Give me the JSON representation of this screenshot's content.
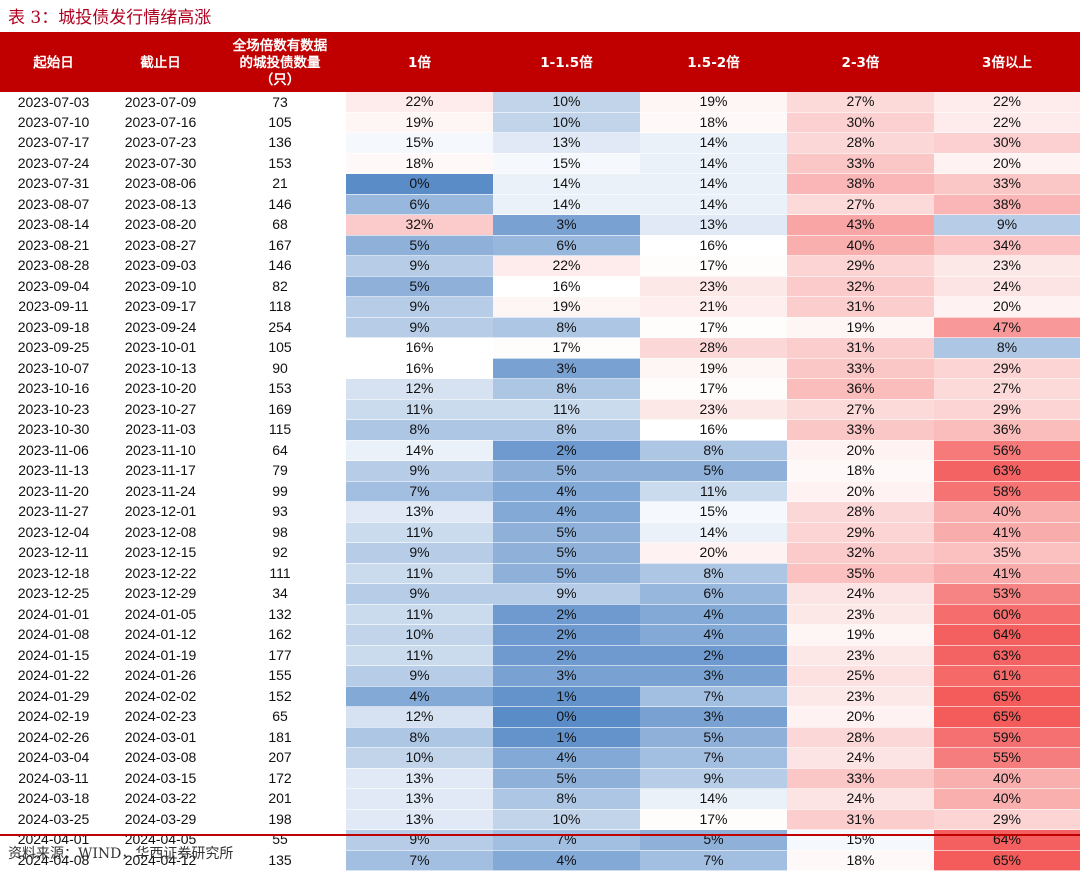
{
  "title": "表 3：城投债发行情绪高涨",
  "source": "资料来源：WIND，华西证券研究所",
  "colors": {
    "header_bg": "#c00000",
    "high": "#f45c5c",
    "low": "#5a8cc8",
    "mid": "#ffffff"
  },
  "chart_data": {
    "type": "table",
    "columns": [
      "起始日",
      "截止日",
      "全场倍数有数据的城投债数量（只）",
      "1倍",
      "1-1.5倍",
      "1.5-2倍",
      "2-3倍",
      "3倍以上"
    ],
    "rows": [
      [
        "2023-07-03",
        "2023-07-09",
        "73",
        "22%",
        "10%",
        "19%",
        "27%",
        "22%"
      ],
      [
        "2023-07-10",
        "2023-07-16",
        "105",
        "19%",
        "10%",
        "18%",
        "30%",
        "22%"
      ],
      [
        "2023-07-17",
        "2023-07-23",
        "136",
        "15%",
        "13%",
        "14%",
        "28%",
        "30%"
      ],
      [
        "2023-07-24",
        "2023-07-30",
        "153",
        "18%",
        "15%",
        "14%",
        "33%",
        "20%"
      ],
      [
        "2023-07-31",
        "2023-08-06",
        "21",
        "0%",
        "14%",
        "14%",
        "38%",
        "33%"
      ],
      [
        "2023-08-07",
        "2023-08-13",
        "146",
        "6%",
        "14%",
        "14%",
        "27%",
        "38%"
      ],
      [
        "2023-08-14",
        "2023-08-20",
        "68",
        "32%",
        "3%",
        "13%",
        "43%",
        "9%"
      ],
      [
        "2023-08-21",
        "2023-08-27",
        "167",
        "5%",
        "6%",
        "16%",
        "40%",
        "34%"
      ],
      [
        "2023-08-28",
        "2023-09-03",
        "146",
        "9%",
        "22%",
        "17%",
        "29%",
        "23%"
      ],
      [
        "2023-09-04",
        "2023-09-10",
        "82",
        "5%",
        "16%",
        "23%",
        "32%",
        "24%"
      ],
      [
        "2023-09-11",
        "2023-09-17",
        "118",
        "9%",
        "19%",
        "21%",
        "31%",
        "20%"
      ],
      [
        "2023-09-18",
        "2023-09-24",
        "254",
        "9%",
        "8%",
        "17%",
        "19%",
        "47%"
      ],
      [
        "2023-09-25",
        "2023-10-01",
        "105",
        "16%",
        "17%",
        "28%",
        "31%",
        "8%"
      ],
      [
        "2023-10-07",
        "2023-10-13",
        "90",
        "16%",
        "3%",
        "19%",
        "33%",
        "29%"
      ],
      [
        "2023-10-16",
        "2023-10-20",
        "153",
        "12%",
        "8%",
        "17%",
        "36%",
        "27%"
      ],
      [
        "2023-10-23",
        "2023-10-27",
        "169",
        "11%",
        "11%",
        "23%",
        "27%",
        "29%"
      ],
      [
        "2023-10-30",
        "2023-11-03",
        "115",
        "8%",
        "8%",
        "16%",
        "33%",
        "36%"
      ],
      [
        "2023-11-06",
        "2023-11-10",
        "64",
        "14%",
        "2%",
        "8%",
        "20%",
        "56%"
      ],
      [
        "2023-11-13",
        "2023-11-17",
        "79",
        "9%",
        "5%",
        "5%",
        "18%",
        "63%"
      ],
      [
        "2023-11-20",
        "2023-11-24",
        "99",
        "7%",
        "4%",
        "11%",
        "20%",
        "58%"
      ],
      [
        "2023-11-27",
        "2023-12-01",
        "93",
        "13%",
        "4%",
        "15%",
        "28%",
        "40%"
      ],
      [
        "2023-12-04",
        "2023-12-08",
        "98",
        "11%",
        "5%",
        "14%",
        "29%",
        "41%"
      ],
      [
        "2023-12-11",
        "2023-12-15",
        "92",
        "9%",
        "5%",
        "20%",
        "32%",
        "35%"
      ],
      [
        "2023-12-18",
        "2023-12-22",
        "111",
        "11%",
        "5%",
        "8%",
        "35%",
        "41%"
      ],
      [
        "2023-12-25",
        "2023-12-29",
        "34",
        "9%",
        "9%",
        "6%",
        "24%",
        "53%"
      ],
      [
        "2024-01-01",
        "2024-01-05",
        "132",
        "11%",
        "2%",
        "4%",
        "23%",
        "60%"
      ],
      [
        "2024-01-08",
        "2024-01-12",
        "162",
        "10%",
        "2%",
        "4%",
        "19%",
        "64%"
      ],
      [
        "2024-01-15",
        "2024-01-19",
        "177",
        "11%",
        "2%",
        "2%",
        "23%",
        "63%"
      ],
      [
        "2024-01-22",
        "2024-01-26",
        "155",
        "9%",
        "3%",
        "3%",
        "25%",
        "61%"
      ],
      [
        "2024-01-29",
        "2024-02-02",
        "152",
        "4%",
        "1%",
        "7%",
        "23%",
        "65%"
      ],
      [
        "2024-02-19",
        "2024-02-23",
        "65",
        "12%",
        "0%",
        "3%",
        "20%",
        "65%"
      ],
      [
        "2024-02-26",
        "2024-03-01",
        "181",
        "8%",
        "1%",
        "5%",
        "28%",
        "59%"
      ],
      [
        "2024-03-04",
        "2024-03-08",
        "207",
        "10%",
        "4%",
        "7%",
        "24%",
        "55%"
      ],
      [
        "2024-03-11",
        "2024-03-15",
        "172",
        "13%",
        "5%",
        "9%",
        "33%",
        "40%"
      ],
      [
        "2024-03-18",
        "2024-03-22",
        "201",
        "13%",
        "8%",
        "14%",
        "24%",
        "40%"
      ],
      [
        "2024-03-25",
        "2024-03-29",
        "198",
        "13%",
        "10%",
        "17%",
        "31%",
        "29%"
      ],
      [
        "2024-04-01",
        "2024-04-05",
        "55",
        "9%",
        "7%",
        "5%",
        "15%",
        "64%"
      ],
      [
        "2024-04-08",
        "2024-04-12",
        "135",
        "7%",
        "4%",
        "7%",
        "18%",
        "65%"
      ]
    ]
  }
}
